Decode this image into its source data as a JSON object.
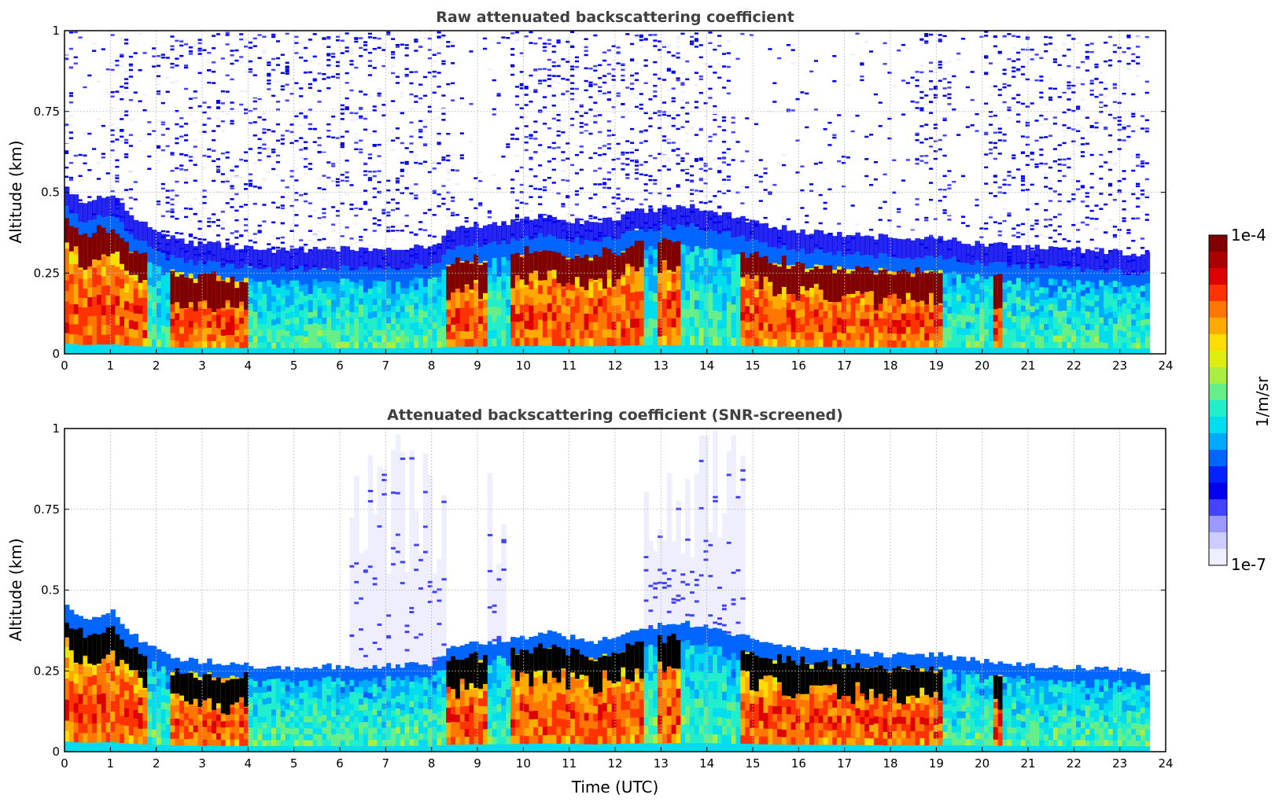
{
  "figure": {
    "colorbar_label": "1/m/sr",
    "colorbar_max_label": "1e-4",
    "colorbar_min_label": "1e-7"
  },
  "colormap": [
    "#eeeeff",
    "#ccccff",
    "#9999ff",
    "#4444ff",
    "#0000ee",
    "#0022ff",
    "#0066ff",
    "#00aaff",
    "#00ddee",
    "#22eecc",
    "#66ee88",
    "#aaee44",
    "#ddee11",
    "#ffdd00",
    "#ffaa00",
    "#ff7700",
    "#ff3300",
    "#dd0000",
    "#aa0000",
    "#800000"
  ],
  "chart_data": [
    {
      "type": "heatmap",
      "title": "Raw attenuated backscattering coefficient",
      "xlabel": "",
      "ylabel": "Altitude (km)",
      "xlim": [
        0,
        24
      ],
      "ylim": [
        0,
        1
      ],
      "xticks": [
        "0",
        "1",
        "2",
        "3",
        "4",
        "5",
        "6",
        "7",
        "8",
        "9",
        "10",
        "11",
        "12",
        "13",
        "14",
        "15",
        "16",
        "17",
        "18",
        "19",
        "20",
        "21",
        "22",
        "23",
        "24"
      ],
      "yticks": [
        "0",
        "0.25",
        "0.5",
        "0.75",
        "1"
      ],
      "grid": true,
      "data_end_hour": 23.65,
      "color_scale": {
        "min": "1e-7",
        "max": "1e-4",
        "scale": "log"
      },
      "layer_top_km": [
        [
          0,
          0.46
        ],
        [
          0.5,
          0.4
        ],
        [
          1.0,
          0.44
        ],
        [
          1.5,
          0.36
        ],
        [
          2.0,
          0.32
        ],
        [
          2.5,
          0.29
        ],
        [
          3.0,
          0.28
        ],
        [
          4.0,
          0.27
        ],
        [
          4.2,
          0.26
        ],
        [
          8.0,
          0.27
        ],
        [
          8.5,
          0.33
        ],
        [
          9.5,
          0.34
        ],
        [
          10.5,
          0.37
        ],
        [
          11.5,
          0.34
        ],
        [
          12.5,
          0.38
        ],
        [
          13.5,
          0.4
        ],
        [
          14.5,
          0.37
        ],
        [
          15.0,
          0.35
        ],
        [
          16.0,
          0.32
        ],
        [
          17.0,
          0.31
        ],
        [
          18.0,
          0.3
        ],
        [
          19.0,
          0.3
        ],
        [
          20.0,
          0.28
        ],
        [
          21.0,
          0.27
        ],
        [
          23.65,
          0.25
        ]
      ],
      "saturated_segments_hours": [
        [
          0.0,
          1.8
        ],
        [
          2.3,
          4.0
        ],
        [
          8.3,
          9.2
        ],
        [
          9.7,
          12.6
        ],
        [
          12.9,
          13.4
        ],
        [
          14.7,
          19.1
        ],
        [
          20.2,
          20.4
        ]
      ]
    },
    {
      "type": "heatmap",
      "title": "Attenuated backscattering coefficient (SNR-screened)",
      "xlabel": "Time (UTC)",
      "ylabel": "Altitude (km)",
      "xlim": [
        0,
        24
      ],
      "ylim": [
        0,
        1
      ],
      "xticks": [
        "0",
        "1",
        "2",
        "3",
        "4",
        "5",
        "6",
        "7",
        "8",
        "9",
        "10",
        "11",
        "12",
        "13",
        "14",
        "15",
        "16",
        "17",
        "18",
        "19",
        "20",
        "21",
        "22",
        "23",
        "24"
      ],
      "yticks": [
        "0",
        "0.25",
        "0.5",
        "0.75",
        "1"
      ],
      "grid": true,
      "data_end_hour": 23.65,
      "color_scale": {
        "min": "1e-7",
        "max": "1e-4",
        "scale": "log"
      },
      "screened_above_layer": true,
      "faint_regions_hours": [
        [
          6.2,
          8.3
        ],
        [
          9.2,
          9.6
        ],
        [
          12.6,
          14.8
        ]
      ],
      "saturated_segments_hours": [
        [
          0.0,
          1.8
        ],
        [
          2.3,
          4.0
        ],
        [
          8.3,
          9.2
        ],
        [
          9.7,
          12.6
        ],
        [
          12.9,
          13.4
        ],
        [
          14.7,
          19.1
        ],
        [
          20.2,
          20.4
        ]
      ]
    }
  ]
}
